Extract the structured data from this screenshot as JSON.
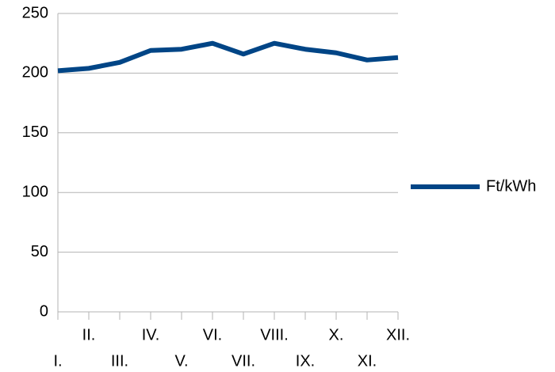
{
  "chart_data": {
    "type": "line",
    "categories": [
      "I.",
      "II.",
      "III.",
      "IV.",
      "V.",
      "VI.",
      "VII.",
      "VIII.",
      "IX.",
      "X.",
      "XI.",
      "XII."
    ],
    "series": [
      {
        "name": "Ft/kWh",
        "color": "#004586",
        "values": [
          202,
          204,
          209,
          219,
          220,
          225,
          216,
          225,
          220,
          217,
          211,
          213
        ]
      }
    ],
    "ylim": [
      0,
      250
    ],
    "yticks": [
      0,
      50,
      100,
      150,
      200,
      250
    ],
    "grid": true,
    "legend": "right"
  }
}
